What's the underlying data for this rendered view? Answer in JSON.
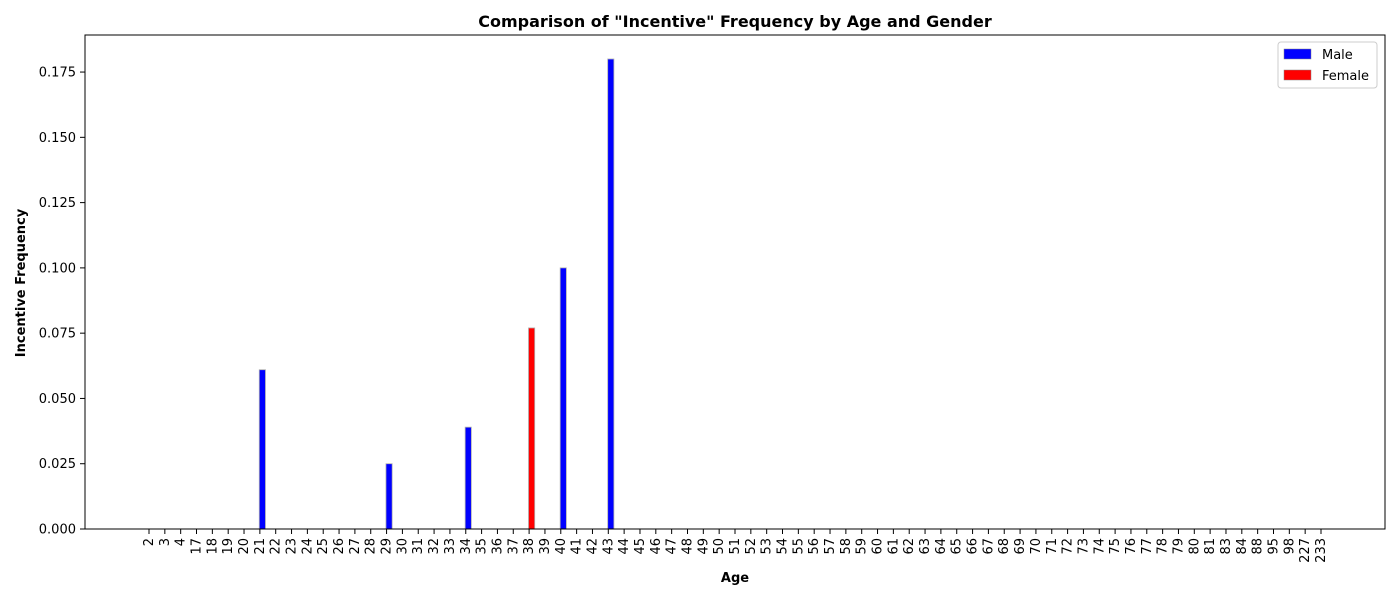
{
  "chart_data": {
    "type": "bar",
    "title": "Comparison of \"Incentive\" Frequency by Age and Gender",
    "xlabel": "Age",
    "ylabel": "Incentive Frequency",
    "ylim": [
      0,
      0.1875
    ],
    "yticks": [
      "0.000",
      "0.025",
      "0.050",
      "0.075",
      "0.100",
      "0.125",
      "0.150",
      "0.175"
    ],
    "categories": [
      "2",
      "3",
      "4",
      "17",
      "18",
      "19",
      "20",
      "21",
      "22",
      "23",
      "24",
      "25",
      "26",
      "27",
      "28",
      "29",
      "30",
      "31",
      "32",
      "33",
      "34",
      "35",
      "36",
      "37",
      "38",
      "39",
      "40",
      "41",
      "42",
      "43",
      "44",
      "45",
      "46",
      "47",
      "48",
      "49",
      "50",
      "51",
      "52",
      "53",
      "54",
      "55",
      "56",
      "57",
      "58",
      "59",
      "60",
      "61",
      "62",
      "63",
      "64",
      "65",
      "66",
      "67",
      "68",
      "69",
      "70",
      "71",
      "72",
      "73",
      "74",
      "75",
      "76",
      "77",
      "78",
      "79",
      "80",
      "81",
      "83",
      "84",
      "88",
      "95",
      "98",
      "227",
      "233"
    ],
    "series": [
      {
        "name": "Male",
        "color": "#0000ff",
        "values": [
          0,
          0,
          0,
          0,
          0,
          0,
          0,
          0.061,
          0,
          0,
          0,
          0,
          0,
          0,
          0,
          0.025,
          0,
          0,
          0,
          0,
          0.039,
          0,
          0,
          0,
          0,
          0,
          0.1,
          0,
          0,
          0.18,
          0,
          0,
          0,
          0,
          0,
          0,
          0,
          0,
          0,
          0,
          0,
          0,
          0,
          0,
          0,
          0,
          0,
          0,
          0,
          0,
          0,
          0,
          0,
          0,
          0,
          0,
          0,
          0,
          0,
          0,
          0,
          0,
          0,
          0,
          0,
          0,
          0,
          0,
          0,
          0,
          0,
          0,
          0,
          0,
          0
        ]
      },
      {
        "name": "Female",
        "color": "#ff0000",
        "values": [
          0,
          0,
          0,
          0,
          0,
          0,
          0,
          0,
          0,
          0,
          0,
          0,
          0,
          0,
          0,
          0,
          0,
          0,
          0,
          0,
          0,
          0,
          0,
          0,
          0.077,
          0,
          0,
          0,
          0,
          0,
          0,
          0,
          0,
          0,
          0,
          0,
          0,
          0,
          0,
          0,
          0,
          0,
          0,
          0,
          0,
          0,
          0,
          0,
          0,
          0,
          0,
          0,
          0,
          0,
          0,
          0,
          0,
          0,
          0,
          0,
          0,
          0,
          0,
          0,
          0,
          0,
          0,
          0,
          0,
          0,
          0,
          0,
          0,
          0,
          0
        ]
      }
    ],
    "legend_position": "top-right",
    "grid": false
  }
}
